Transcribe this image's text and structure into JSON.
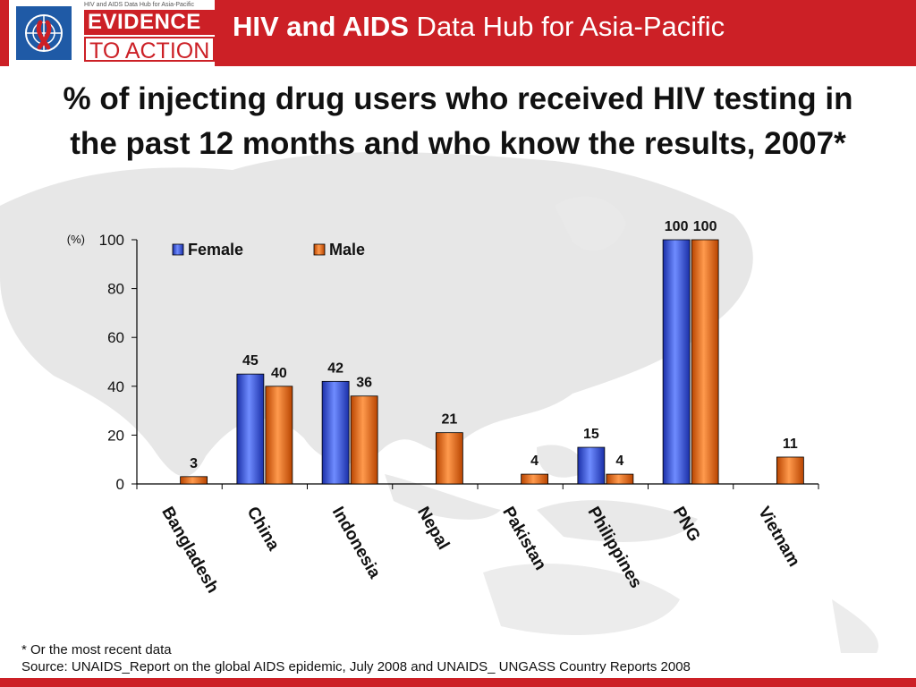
{
  "header": {
    "logo_small_text": "HIV and AIDS Data Hub for Asia-Pacific",
    "logo_line1": "EVIDENCE",
    "logo_line2": "TO ACTION",
    "title_bold": "HIV and AIDS",
    "title_rest": " Data Hub for Asia-Pacific"
  },
  "slide_title": "% of injecting drug users who received HIV testing in the past 12 months and who know the results, 2007*",
  "footnote": "* Or the most recent data",
  "source": "Source: UNAIDS_Report on the global AIDS epidemic, July 2008 and UNAIDS_ UNGASS Country Reports 2008",
  "colors": {
    "brand_red": "#cc2026",
    "female": "#2f4fe0",
    "male": "#e8650c"
  },
  "chart_data": {
    "type": "bar",
    "title": "% of injecting drug users who received HIV testing in the past 12 months and who know the results, 2007*",
    "ylabel": "(%)",
    "xlabel": "",
    "ylim": [
      0,
      100
    ],
    "yticks": [
      0,
      20,
      40,
      60,
      80,
      100
    ],
    "legend_position": "top-left",
    "grid": false,
    "categories": [
      "Bangladesh",
      "China",
      "Indonesia",
      "Nepal",
      "Pakistan",
      "Philippines",
      "PNG",
      "Vietnam"
    ],
    "series": [
      {
        "name": "Female",
        "values": [
          null,
          45,
          42,
          null,
          null,
          15,
          100,
          null
        ]
      },
      {
        "name": "Male",
        "values": [
          3,
          40,
          36,
          21,
          4,
          4,
          100,
          11
        ]
      }
    ]
  }
}
